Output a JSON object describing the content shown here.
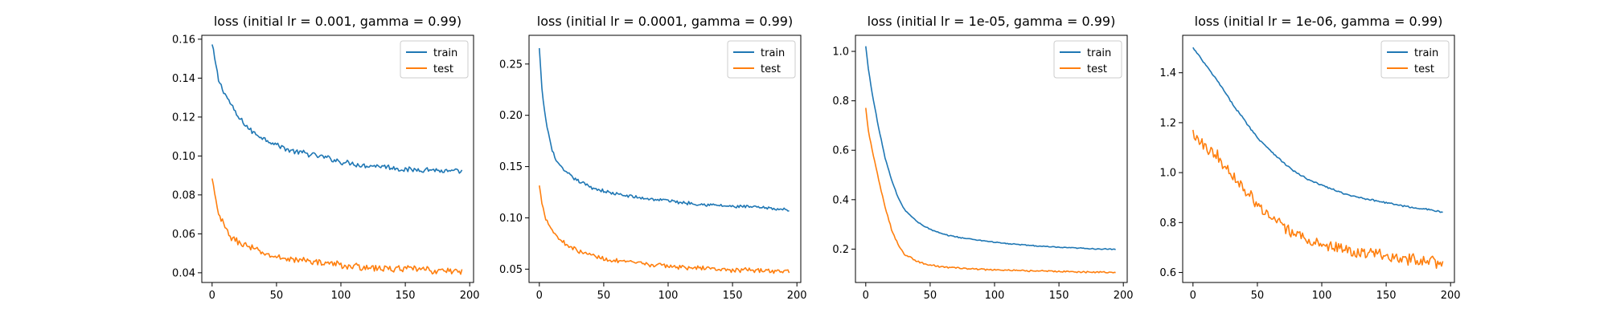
{
  "chart_data": [
    {
      "type": "line",
      "title": "loss (initial lr = 0.001, gamma = 0.99)",
      "xlabel": "",
      "ylabel": "",
      "xlim": [
        -8,
        203
      ],
      "ylim": [
        0.035,
        0.162
      ],
      "xticks": [
        0,
        50,
        100,
        150,
        200
      ],
      "xtick_labels": [
        "0",
        "50",
        "100",
        "150",
        "200"
      ],
      "yticks": [
        0.04,
        0.06,
        0.08,
        0.1,
        0.12,
        0.14,
        0.16
      ],
      "ytick_labels": [
        "0.04",
        "0.06",
        "0.08",
        "0.10",
        "0.12",
        "0.14",
        "0.16"
      ],
      "grid": false,
      "legend": "upper right",
      "n_points": 195,
      "series": [
        {
          "name": "train",
          "color": "#1f77b4",
          "x": [
            0,
            2,
            5,
            10,
            15,
            20,
            30,
            40,
            50,
            60,
            75,
            90,
            100,
            110,
            120,
            130,
            140,
            150,
            160,
            170,
            180,
            190,
            194
          ],
          "values": [
            0.157,
            0.15,
            0.139,
            0.132,
            0.126,
            0.12,
            0.113,
            0.109,
            0.106,
            0.103,
            0.101,
            0.099,
            0.097,
            0.096,
            0.095,
            0.095,
            0.094,
            0.093,
            0.093,
            0.093,
            0.092,
            0.092,
            0.092
          ],
          "noise": 0.0012
        },
        {
          "name": "test",
          "color": "#ff7f0e",
          "x": [
            0,
            2,
            5,
            10,
            15,
            20,
            30,
            40,
            50,
            60,
            75,
            90,
            100,
            110,
            120,
            130,
            140,
            150,
            160,
            170,
            180,
            190,
            194
          ],
          "values": [
            0.088,
            0.08,
            0.07,
            0.063,
            0.058,
            0.056,
            0.053,
            0.05,
            0.048,
            0.047,
            0.046,
            0.045,
            0.044,
            0.043,
            0.043,
            0.042,
            0.042,
            0.042,
            0.042,
            0.041,
            0.041,
            0.041,
            0.041
          ],
          "noise": 0.0015
        }
      ]
    },
    {
      "type": "line",
      "title": "loss (initial lr = 0.0001, gamma = 0.99)",
      "xlabel": "",
      "ylabel": "",
      "xlim": [
        -8,
        203
      ],
      "ylim": [
        0.037,
        0.278
      ],
      "xticks": [
        0,
        50,
        100,
        150,
        200
      ],
      "xtick_labels": [
        "0",
        "50",
        "100",
        "150",
        "200"
      ],
      "yticks": [
        0.05,
        0.1,
        0.15,
        0.2,
        0.25
      ],
      "ytick_labels": [
        "0.05",
        "0.10",
        "0.15",
        "0.20",
        "0.25"
      ],
      "grid": false,
      "legend": "upper right",
      "n_points": 195,
      "series": [
        {
          "name": "train",
          "color": "#1f77b4",
          "x": [
            0,
            2,
            5,
            10,
            15,
            20,
            30,
            40,
            50,
            60,
            75,
            90,
            100,
            110,
            120,
            130,
            140,
            150,
            160,
            170,
            180,
            190,
            194
          ],
          "values": [
            0.265,
            0.225,
            0.195,
            0.165,
            0.152,
            0.145,
            0.136,
            0.13,
            0.126,
            0.123,
            0.12,
            0.118,
            0.117,
            0.115,
            0.114,
            0.113,
            0.112,
            0.111,
            0.111,
            0.11,
            0.109,
            0.108,
            0.108
          ],
          "noise": 0.0015
        },
        {
          "name": "test",
          "color": "#ff7f0e",
          "x": [
            0,
            2,
            5,
            10,
            15,
            20,
            30,
            40,
            50,
            60,
            75,
            90,
            100,
            110,
            120,
            130,
            140,
            150,
            160,
            170,
            180,
            190,
            194
          ],
          "values": [
            0.131,
            0.115,
            0.1,
            0.088,
            0.08,
            0.075,
            0.068,
            0.064,
            0.06,
            0.058,
            0.056,
            0.054,
            0.053,
            0.052,
            0.051,
            0.051,
            0.05,
            0.049,
            0.049,
            0.049,
            0.048,
            0.048,
            0.048
          ],
          "noise": 0.0018
        }
      ]
    },
    {
      "type": "line",
      "title": "loss (initial lr = 1e-05, gamma = 0.99)",
      "xlabel": "",
      "ylabel": "",
      "xlim": [
        -8,
        203
      ],
      "ylim": [
        0.065,
        1.065
      ],
      "xticks": [
        0,
        50,
        100,
        150,
        200
      ],
      "xtick_labels": [
        "0",
        "50",
        "100",
        "150",
        "200"
      ],
      "yticks": [
        0.2,
        0.4,
        0.6,
        0.8,
        1.0
      ],
      "ytick_labels": [
        "0.2",
        "0.4",
        "0.6",
        "0.8",
        "1.0"
      ],
      "grid": false,
      "legend": "upper right",
      "n_points": 195,
      "series": [
        {
          "name": "train",
          "color": "#1f77b4",
          "x": [
            0,
            2,
            5,
            10,
            15,
            20,
            25,
            30,
            40,
            50,
            60,
            75,
            90,
            100,
            110,
            120,
            130,
            140,
            150,
            160,
            170,
            180,
            190,
            194
          ],
          "values": [
            1.02,
            0.93,
            0.83,
            0.69,
            0.57,
            0.48,
            0.41,
            0.36,
            0.31,
            0.28,
            0.26,
            0.245,
            0.235,
            0.228,
            0.222,
            0.218,
            0.214,
            0.21,
            0.207,
            0.205,
            0.203,
            0.201,
            0.199,
            0.198
          ],
          "noise": 0.002
        },
        {
          "name": "test",
          "color": "#ff7f0e",
          "x": [
            0,
            2,
            5,
            10,
            15,
            20,
            25,
            30,
            40,
            50,
            60,
            75,
            90,
            100,
            110,
            120,
            130,
            140,
            150,
            160,
            170,
            180,
            190,
            194
          ],
          "values": [
            0.77,
            0.68,
            0.6,
            0.48,
            0.37,
            0.28,
            0.22,
            0.18,
            0.15,
            0.135,
            0.128,
            0.122,
            0.118,
            0.116,
            0.114,
            0.113,
            0.112,
            0.111,
            0.11,
            0.109,
            0.108,
            0.107,
            0.106,
            0.106
          ],
          "noise": 0.003
        }
      ]
    },
    {
      "type": "line",
      "title": "loss (initial lr = 1e-06, gamma = 0.99)",
      "xlabel": "",
      "ylabel": "",
      "xlim": [
        -8,
        203
      ],
      "ylim": [
        0.56,
        1.55
      ],
      "xticks": [
        0,
        50,
        100,
        150,
        200
      ],
      "xtick_labels": [
        "0",
        "50",
        "100",
        "150",
        "200"
      ],
      "yticks": [
        0.6,
        0.8,
        1.0,
        1.2,
        1.4
      ],
      "ytick_labels": [
        "0.6",
        "0.8",
        "1.0",
        "1.2",
        "1.4"
      ],
      "grid": false,
      "legend": "upper right",
      "n_points": 195,
      "series": [
        {
          "name": "train",
          "color": "#1f77b4",
          "x": [
            0,
            10,
            20,
            30,
            40,
            50,
            60,
            70,
            80,
            90,
            100,
            110,
            120,
            130,
            140,
            150,
            160,
            170,
            180,
            190,
            194
          ],
          "values": [
            1.5,
            1.43,
            1.36,
            1.28,
            1.21,
            1.14,
            1.09,
            1.04,
            1.0,
            0.97,
            0.95,
            0.93,
            0.91,
            0.9,
            0.89,
            0.88,
            0.87,
            0.86,
            0.855,
            0.845,
            0.84
          ],
          "noise": 0.003
        },
        {
          "name": "test",
          "color": "#ff7f0e",
          "x": [
            0,
            10,
            20,
            30,
            40,
            50,
            60,
            70,
            80,
            90,
            100,
            110,
            120,
            130,
            140,
            150,
            160,
            170,
            180,
            190,
            194
          ],
          "values": [
            1.16,
            1.11,
            1.06,
            1.0,
            0.93,
            0.87,
            0.82,
            0.78,
            0.75,
            0.73,
            0.71,
            0.7,
            0.69,
            0.68,
            0.67,
            0.66,
            0.66,
            0.65,
            0.64,
            0.64,
            0.64
          ],
          "noise": 0.022
        }
      ]
    }
  ]
}
